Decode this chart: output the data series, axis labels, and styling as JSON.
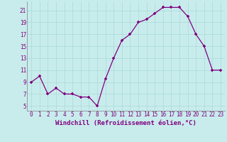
{
  "x": [
    0,
    1,
    2,
    3,
    4,
    5,
    6,
    7,
    8,
    9,
    10,
    11,
    12,
    13,
    14,
    15,
    16,
    17,
    18,
    19,
    20,
    21,
    22,
    23
  ],
  "y": [
    9,
    10,
    7,
    8,
    7,
    7,
    6.5,
    6.5,
    5,
    9.5,
    13,
    16,
    17,
    19,
    19.5,
    20.5,
    21.5,
    21.5,
    21.5,
    20,
    17,
    15,
    11,
    11
  ],
  "line_color": "#800080",
  "marker": "+",
  "marker_color": "#800080",
  "xlabel": "Windchill (Refroidissement éolien,°C)",
  "xlim": [
    -0.5,
    23.5
  ],
  "ylim": [
    4.2,
    22.5
  ],
  "yticks": [
    5,
    7,
    9,
    11,
    13,
    15,
    17,
    19,
    21
  ],
  "xticks": [
    0,
    1,
    2,
    3,
    4,
    5,
    6,
    7,
    8,
    9,
    10,
    11,
    12,
    13,
    14,
    15,
    16,
    17,
    18,
    19,
    20,
    21,
    22,
    23
  ],
  "grid_color": "#aad8d8",
  "bg_color": "#c8ecec",
  "tick_label_fontsize": 5.5,
  "xlabel_fontsize": 6.5
}
